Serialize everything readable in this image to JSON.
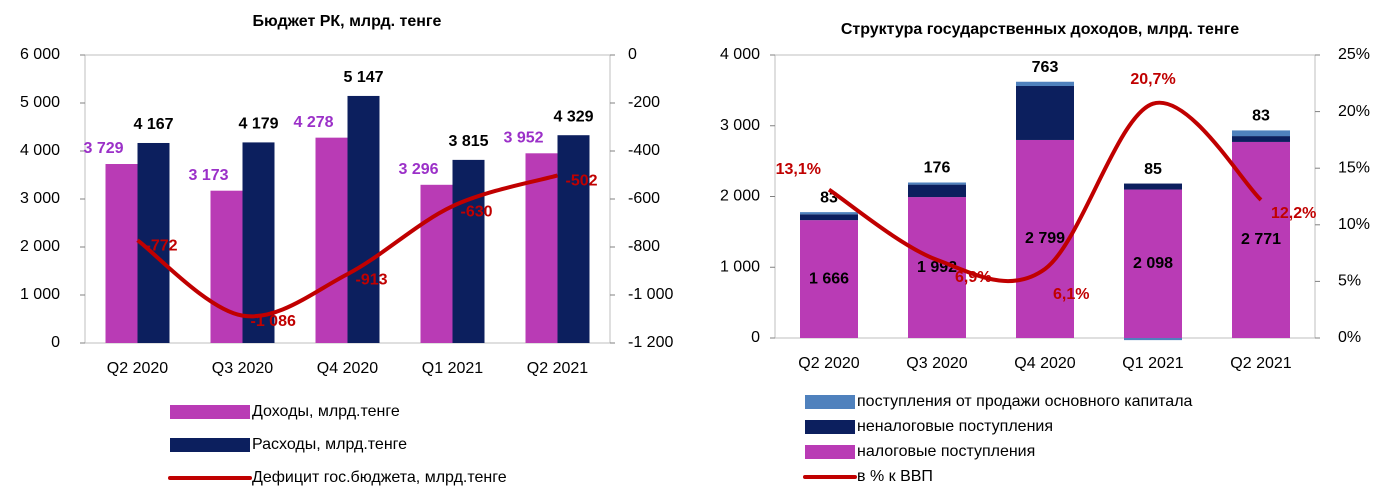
{
  "chart_data": [
    {
      "type": "bar",
      "title": "Бюджет РК, млрд. тенге",
      "categories": [
        "Q2 2020",
        "Q3 2020",
        "Q4 2020",
        "Q1 2021",
        "Q2 2021"
      ],
      "series": [
        {
          "name": "Доходы, млрд.тенге",
          "color": "#b93bb5",
          "values": [
            3729,
            3173,
            4278,
            3296,
            3952
          ],
          "value_labels": [
            "3 729",
            "3 173",
            "4 278",
            "3 296",
            "3 952"
          ]
        },
        {
          "name": "Расходы, млрд.тенге",
          "color": "#0c1f5e",
          "values": [
            4167,
            4179,
            5147,
            3815,
            4329
          ],
          "value_labels": [
            "4 167",
            "4 179",
            "5 147",
            "3 815",
            "4 329"
          ]
        },
        {
          "name": "Дефицит гос.бюджета, млрд.тенге",
          "color": "#c00000",
          "type": "line",
          "axis": "y2",
          "values": [
            -772,
            -1086,
            -913,
            -630,
            -502
          ],
          "value_labels": [
            "-772",
            "-1 086",
            "-913",
            "-630",
            "-502"
          ]
        }
      ],
      "ylim": [
        0,
        6000
      ],
      "yticks": [
        0,
        {
          "value": 1000,
          "label": "1 000"
        },
        {
          "value": 2000,
          "label": "2 000"
        },
        {
          "value": 3000,
          "label": "3 000"
        },
        {
          "value": 4000,
          "label": "4 000"
        },
        {
          "value": 5000,
          "label": "5 000"
        },
        {
          "value": 6000,
          "label": "6 000"
        }
      ],
      "y2lim": [
        -1200,
        0
      ],
      "y2ticks": [
        {
          "value": -1200,
          "label": "-1 200"
        },
        {
          "value": -1000,
          "label": "-1 000"
        },
        -800,
        -600,
        -400,
        -200,
        0
      ]
    },
    {
      "type": "stacked_bar",
      "title": "Структура государственных доходов, млрд. тенге",
      "categories": [
        "Q2 2020",
        "Q3 2020",
        "Q4 2020",
        "Q1 2021",
        "Q2 2021"
      ],
      "series": [
        {
          "name": "поступления от продажи основного капитала",
          "color": "#4f81bd",
          "values": [
            30,
            30,
            60,
            -30,
            80
          ]
        },
        {
          "name": "неналоговые поступления",
          "color": "#0c1f5e",
          "values": [
            83,
            176,
            763,
            85,
            83
          ]
        },
        {
          "name": "налоговые поступления",
          "color": "#b93bb5",
          "values": [
            1666,
            1992,
            2799,
            2098,
            2771
          ],
          "value_labels": [
            "1 666",
            "1 992",
            "2 799",
            "2 098",
            "2 771"
          ]
        },
        {
          "name": "в % к ВВП",
          "color": "#c00000",
          "type": "line",
          "axis": "y2",
          "values": [
            13.1,
            6.9,
            6.1,
            20.7,
            12.2
          ],
          "value_labels": [
            "13,1%",
            "6,9%",
            "6,1%",
            "20,7%",
            "12,2%"
          ]
        }
      ],
      "ylim": [
        0,
        4000
      ],
      "yticks": [
        0,
        {
          "value": 1000,
          "label": "1 000"
        },
        {
          "value": 2000,
          "label": "2 000"
        },
        {
          "value": 3000,
          "label": "3 000"
        },
        {
          "value": 4000,
          "label": "4 000"
        }
      ],
      "y2lim": [
        0,
        25
      ],
      "y2ticks": [
        {
          "value": 0,
          "label": "0%"
        },
        {
          "value": 5,
          "label": "5%"
        },
        {
          "value": 10,
          "label": "10%"
        },
        {
          "value": 15,
          "label": "15%"
        },
        {
          "value": 20,
          "label": "20%"
        },
        {
          "value": 25,
          "label": "25%"
        }
      ]
    }
  ]
}
